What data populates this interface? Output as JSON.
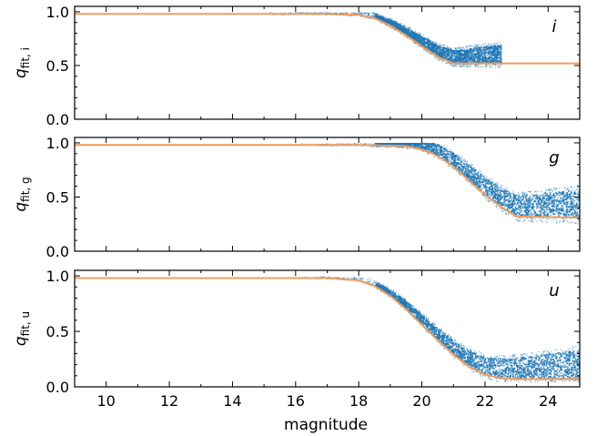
{
  "chart_data": {
    "type": "scatter",
    "xlabel": "magnitude",
    "xlim": [
      9,
      25
    ],
    "x_ticks": [
      10,
      12,
      14,
      16,
      18,
      20,
      22,
      24
    ],
    "y_ticks": [
      0.0,
      0.5,
      1.0
    ],
    "panels": [
      {
        "band": "i",
        "ylabel_main": "q",
        "ylabel_sub": "fit, i",
        "ylim": [
          0,
          1.05
        ],
        "curve_color": "#f39c5a",
        "point_color": "#1f77b4",
        "curve": {
          "x": [
            9,
            17,
            18,
            18.5,
            19,
            19.5,
            20,
            20.5,
            21,
            25
          ],
          "y": [
            0.98,
            0.98,
            0.97,
            0.94,
            0.87,
            0.78,
            0.68,
            0.58,
            0.52,
            0.52
          ]
        },
        "scatter_ranges": {
          "x": [
            15,
            22.5
          ],
          "y": [
            0.3,
            1.0
          ]
        }
      },
      {
        "band": "g",
        "ylabel_main": "q",
        "ylabel_sub": "fit, g",
        "ylim": [
          0,
          1.05
        ],
        "curve_color": "#f39c5a",
        "point_color": "#1f77b4",
        "curve": {
          "x": [
            9,
            18,
            19.5,
            20,
            20.5,
            21,
            21.5,
            22,
            22.5,
            23,
            25
          ],
          "y": [
            0.98,
            0.98,
            0.97,
            0.94,
            0.88,
            0.78,
            0.65,
            0.52,
            0.41,
            0.32,
            0.31
          ]
        },
        "scatter_ranges": {
          "x": [
            16,
            25
          ],
          "y": [
            0.2,
            1.0
          ]
        }
      },
      {
        "band": "u",
        "ylabel_main": "q",
        "ylabel_sub": "fit, u",
        "ylim": [
          0,
          1.05
        ],
        "curve_color": "#f39c5a",
        "point_color": "#1f77b4",
        "curve": {
          "x": [
            9,
            17,
            18,
            18.5,
            19,
            19.5,
            20,
            20.5,
            21,
            21.5,
            22,
            22.5,
            23,
            25
          ],
          "y": [
            0.98,
            0.98,
            0.96,
            0.91,
            0.82,
            0.7,
            0.56,
            0.42,
            0.29,
            0.18,
            0.11,
            0.08,
            0.07,
            0.07
          ]
        },
        "scatter_ranges": {
          "x": [
            16,
            25
          ],
          "y": [
            0.05,
            1.0
          ]
        }
      }
    ]
  }
}
